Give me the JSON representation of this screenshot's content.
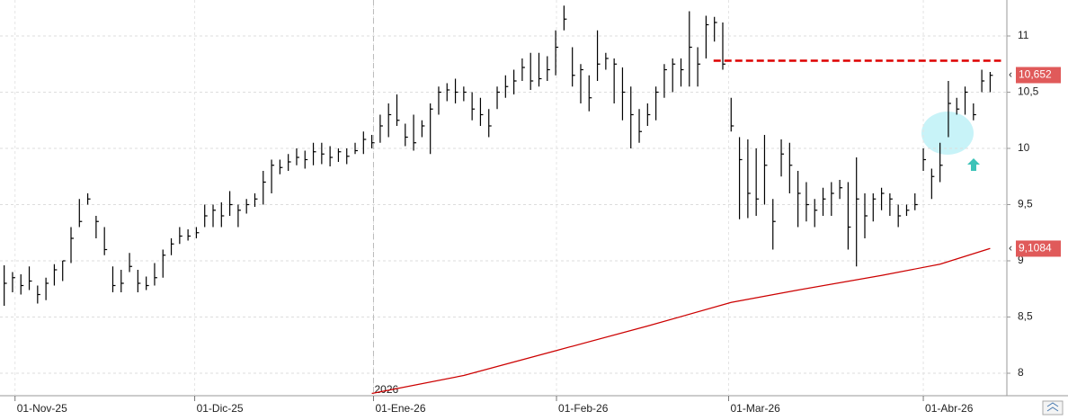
{
  "chart_data": {
    "type": "ohlc",
    "color": "#000000",
    "x": [
      0,
      1,
      2,
      3,
      4,
      5,
      6,
      7,
      8,
      9,
      10,
      11,
      12,
      13,
      14,
      15,
      16,
      17,
      18,
      19,
      20,
      21,
      22,
      23,
      24,
      25,
      26,
      27,
      28,
      29,
      30,
      31,
      32,
      33,
      34,
      35,
      36,
      37,
      38,
      39,
      40,
      41,
      42,
      43,
      44,
      45,
      46,
      47,
      48,
      49,
      50,
      51,
      52,
      53,
      54,
      55,
      56,
      57,
      58,
      59,
      60,
      61,
      62,
      63,
      64,
      65,
      66,
      67,
      68,
      69,
      70,
      71,
      72,
      73,
      74,
      75,
      76,
      77,
      78,
      79,
      80,
      81,
      82,
      83,
      84,
      85,
      86,
      87,
      88,
      89,
      90,
      91,
      92,
      93,
      94,
      95,
      96,
      97,
      98,
      99,
      100,
      101,
      102,
      103,
      104,
      105,
      106,
      107,
      108,
      109,
      110,
      111,
      112,
      113,
      114,
      115,
      116,
      117,
      118
    ],
    "high": [
      8.96,
      8.9,
      8.88,
      8.95,
      8.78,
      8.85,
      8.97,
      9.0,
      9.3,
      9.55,
      9.6,
      9.4,
      9.3,
      8.95,
      8.92,
      9.07,
      8.92,
      8.86,
      8.98,
      9.1,
      9.2,
      9.3,
      9.28,
      9.3,
      9.5,
      9.5,
      9.52,
      9.62,
      9.5,
      9.55,
      9.6,
      9.8,
      9.9,
      9.9,
      9.95,
      10.0,
      9.98,
      10.05,
      10.05,
      10.02,
      10.0,
      10.0,
      10.05,
      10.15,
      10.12,
      10.3,
      10.4,
      10.48,
      10.22,
      10.3,
      10.25,
      10.4,
      10.55,
      10.58,
      10.62,
      10.55,
      10.5,
      10.45,
      10.35,
      10.55,
      10.65,
      10.7,
      10.8,
      10.85,
      10.85,
      10.82,
      11.05,
      11.27,
      10.9,
      10.75,
      10.65,
      11.05,
      10.85,
      10.8,
      10.72,
      10.55,
      10.35,
      10.4,
      10.55,
      10.75,
      10.8,
      10.8,
      11.22,
      10.9,
      11.18,
      11.17,
      11.12,
      10.45,
      10.1,
      10.08,
      10.0,
      10.12,
      9.55,
      10.08,
      10.05,
      9.8,
      9.7,
      9.55,
      9.65,
      9.7,
      9.72,
      9.7,
      9.92,
      9.6,
      9.6,
      9.65,
      9.6,
      9.5,
      9.5,
      9.6,
      10.0,
      9.82,
      10.05,
      10.6,
      10.45,
      10.55,
      10.4,
      10.7,
      10.68
    ],
    "low": [
      8.6,
      8.72,
      8.7,
      8.74,
      8.62,
      8.65,
      8.78,
      8.82,
      8.98,
      9.3,
      9.5,
      9.2,
      9.05,
      8.72,
      8.72,
      8.9,
      8.72,
      8.74,
      8.78,
      8.85,
      9.05,
      9.15,
      9.18,
      9.2,
      9.3,
      9.3,
      9.3,
      9.4,
      9.3,
      9.42,
      9.48,
      9.5,
      9.6,
      9.77,
      9.8,
      9.85,
      9.82,
      9.85,
      9.86,
      9.84,
      9.88,
      9.86,
      9.95,
      9.95,
      10.0,
      10.05,
      10.1,
      10.2,
      10.02,
      9.98,
      10.1,
      9.95,
      10.3,
      10.42,
      10.4,
      10.42,
      10.25,
      10.2,
      10.1,
      10.35,
      10.45,
      10.48,
      10.6,
      10.52,
      10.55,
      10.6,
      10.65,
      11.05,
      10.55,
      10.4,
      10.33,
      10.6,
      10.7,
      10.4,
      10.25,
      10.0,
      10.05,
      10.2,
      10.25,
      10.45,
      10.5,
      10.55,
      10.55,
      10.55,
      10.8,
      10.95,
      10.7,
      10.15,
      9.37,
      9.38,
      9.4,
      9.5,
      9.1,
      9.75,
      9.6,
      9.3,
      9.35,
      9.3,
      9.4,
      9.4,
      9.55,
      9.1,
      8.95,
      9.2,
      9.35,
      9.45,
      9.4,
      9.3,
      9.4,
      9.45,
      9.8,
      9.55,
      9.7,
      10.1,
      10.3,
      10.3,
      10.25,
      10.5,
      10.5
    ],
    "close": [
      8.8,
      8.85,
      8.78,
      8.82,
      8.7,
      8.8,
      8.92,
      9.0,
      9.2,
      9.35,
      9.55,
      9.35,
      9.1,
      8.78,
      8.8,
      8.95,
      8.8,
      8.78,
      8.85,
      9.05,
      9.15,
      9.22,
      9.22,
      9.25,
      9.4,
      9.45,
      9.4,
      9.5,
      9.45,
      9.5,
      9.55,
      9.7,
      9.85,
      9.83,
      9.88,
      9.92,
      9.9,
      9.97,
      9.95,
      9.92,
      9.97,
      9.93,
      9.98,
      10.08,
      10.05,
      10.2,
      10.3,
      10.25,
      10.1,
      10.05,
      10.2,
      10.35,
      10.5,
      10.52,
      10.5,
      10.5,
      10.35,
      10.3,
      10.2,
      10.5,
      10.55,
      10.6,
      10.72,
      10.6,
      10.62,
      10.7,
      10.9,
      11.15,
      10.65,
      10.7,
      10.45,
      10.75,
      10.8,
      10.75,
      10.5,
      10.3,
      10.15,
      10.3,
      10.5,
      10.7,
      10.75,
      10.7,
      10.9,
      10.75,
      11.1,
      11.12,
      10.75,
      10.2,
      9.9,
      9.6,
      9.55,
      9.85,
      9.35,
      9.95,
      9.85,
      9.6,
      9.5,
      9.45,
      9.55,
      9.6,
      9.65,
      9.3,
      9.55,
      9.4,
      9.55,
      9.6,
      9.55,
      9.4,
      9.45,
      9.5,
      9.9,
      9.75,
      9.85,
      10.4,
      10.35,
      10.5,
      10.3,
      10.6,
      10.65
    ],
    "moving_average": {
      "color": "#cc0000",
      "x": [
        44,
        55,
        66,
        77,
        87,
        95,
        105,
        112,
        118
      ],
      "values": [
        7.82,
        7.98,
        8.2,
        8.42,
        8.63,
        8.74,
        8.87,
        8.97,
        9.11
      ]
    },
    "resistance": {
      "value": 10.78,
      "x": [
        84.9,
        119.3
      ],
      "color": "#dd0000"
    },
    "last_price": {
      "value": 10.652,
      "label": "10,652"
    },
    "ma_last": {
      "value": 9.1084,
      "label": "9,1084"
    },
    "year_marker": {
      "x": 44.2,
      "label": "2026"
    },
    "xlim": [
      -0.5,
      120
    ],
    "ylim": [
      7.8,
      11.32
    ],
    "yticks": [
      8,
      {
        "value": 8.5,
        "label": "8,5"
      },
      9,
      {
        "value": 9.5,
        "label": "9,5"
      },
      10,
      {
        "value": 10.5,
        "label": "10,5"
      },
      11
    ],
    "xticks": [
      {
        "value": 1.3,
        "label": "01-Nov-25"
      },
      {
        "value": 22.8,
        "label": "01-Dic-25"
      },
      {
        "value": 44.2,
        "label": "01-Ene-26"
      },
      {
        "value": 66.1,
        "label": "01-Feb-26"
      },
      {
        "value": 86.7,
        "label": "01-Mar-26"
      },
      {
        "value": 110,
        "label": "01-Abr-26"
      }
    ],
    "grid": true
  }
}
